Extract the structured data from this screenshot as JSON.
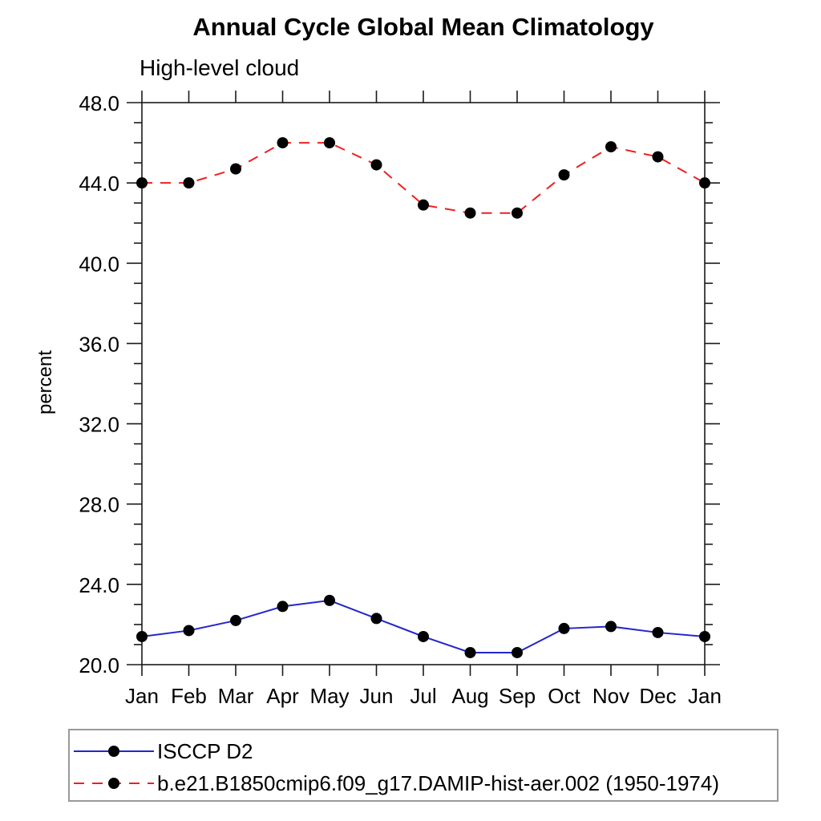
{
  "chart_data": {
    "type": "line",
    "title": "Annual Cycle Global Mean Climatology",
    "subtitle": "High-level cloud",
    "ylabel": "percent",
    "xlabel": "",
    "categories": [
      "Jan",
      "Feb",
      "Mar",
      "Apr",
      "May",
      "Jun",
      "Jul",
      "Aug",
      "Sep",
      "Oct",
      "Nov",
      "Dec",
      "Jan"
    ],
    "ylim": [
      20,
      48
    ],
    "ytick_major": [
      20,
      24,
      28,
      32,
      36,
      40,
      44,
      48
    ],
    "ytick_major_labels": [
      "20.0",
      "24.0",
      "28.0",
      "32.0",
      "36.0",
      "40.0",
      "44.0",
      "48.0"
    ],
    "ytick_minor_step": 1,
    "grid": false,
    "legend_position": "bottom-left-box",
    "axis_color": "#1a1a1a",
    "marker": "filled-circle",
    "marker_color": "#000000",
    "series": [
      {
        "name": "ISCCP D2",
        "color": "#2525cc",
        "line_style": "solid",
        "values": [
          21.4,
          21.7,
          22.2,
          22.9,
          23.2,
          22.3,
          21.4,
          20.6,
          20.6,
          21.8,
          21.9,
          21.6,
          21.4
        ]
      },
      {
        "name": "b.e21.B1850cmip6.f09_g17.DAMIP-hist-aer.002 (1950-1974)",
        "color": "#ee2020",
        "line_style": "dashed",
        "values": [
          44.0,
          44.0,
          44.7,
          46.0,
          46.0,
          44.9,
          42.9,
          42.5,
          42.5,
          44.4,
          45.8,
          45.3,
          44.0
        ]
      }
    ]
  }
}
